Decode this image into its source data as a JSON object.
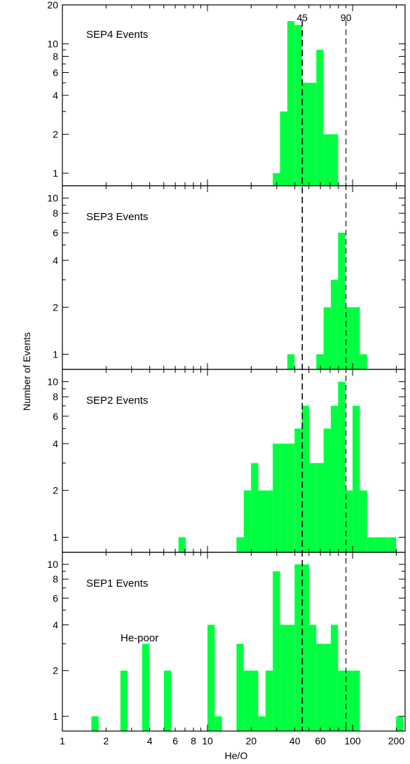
{
  "figure": {
    "xlabel": "He/O",
    "ylabel": "Number of Events",
    "x_tick_labels": [
      "1",
      "2",
      "4",
      "6",
      "8",
      "10",
      "20",
      "40",
      "60",
      "100",
      "200"
    ],
    "reference_lines": [
      {
        "x": 45,
        "label": "45"
      },
      {
        "x": 90,
        "label": "90"
      }
    ]
  },
  "chart_data": [
    {
      "type": "bar",
      "title": "SEP4 Events",
      "x_scale": "log",
      "y_scale": "log",
      "xlim": [
        1,
        230
      ],
      "ylim": [
        0.8,
        20
      ],
      "y_tick_labels": [
        "1",
        "2",
        "4",
        "6",
        "8",
        "10",
        "20"
      ],
      "bins": [
        {
          "x0": 28.2,
          "x1": 31.6,
          "count": 1
        },
        {
          "x0": 31.6,
          "x1": 35.5,
          "count": 3
        },
        {
          "x0": 35.5,
          "x1": 39.8,
          "count": 15
        },
        {
          "x0": 39.8,
          "x1": 44.7,
          "count": 14
        },
        {
          "x0": 44.7,
          "x1": 50.1,
          "count": 5
        },
        {
          "x0": 50.1,
          "x1": 56.2,
          "count": 5
        },
        {
          "x0": 56.2,
          "x1": 63.1,
          "count": 9
        },
        {
          "x0": 63.1,
          "x1": 70.8,
          "count": 2
        },
        {
          "x0": 70.8,
          "x1": 79.4,
          "count": 2
        }
      ]
    },
    {
      "type": "bar",
      "title": "SEP3 Events",
      "x_scale": "log",
      "y_scale": "log",
      "xlim": [
        1,
        230
      ],
      "ylim": [
        0.8,
        12
      ],
      "y_tick_labels": [
        "1",
        "2",
        "4",
        "6",
        "8",
        "10"
      ],
      "bins": [
        {
          "x0": 35.5,
          "x1": 39.8,
          "count": 1
        },
        {
          "x0": 56.2,
          "x1": 63.1,
          "count": 1
        },
        {
          "x0": 63.1,
          "x1": 70.8,
          "count": 2
        },
        {
          "x0": 70.8,
          "x1": 79.4,
          "count": 3
        },
        {
          "x0": 79.4,
          "x1": 89.1,
          "count": 6
        },
        {
          "x0": 89.1,
          "x1": 100.0,
          "count": 2
        },
        {
          "x0": 100.0,
          "x1": 112.2,
          "count": 2
        },
        {
          "x0": 112.2,
          "x1": 125.9,
          "count": 1
        }
      ]
    },
    {
      "type": "bar",
      "title": "SEP2 Events",
      "x_scale": "log",
      "y_scale": "log",
      "xlim": [
        1,
        230
      ],
      "ylim": [
        0.8,
        12
      ],
      "y_tick_labels": [
        "1",
        "2",
        "4",
        "6",
        "8",
        "10"
      ],
      "bins": [
        {
          "x0": 6.31,
          "x1": 7.08,
          "count": 1
        },
        {
          "x0": 15.85,
          "x1": 17.78,
          "count": 1
        },
        {
          "x0": 17.78,
          "x1": 19.95,
          "count": 2
        },
        {
          "x0": 19.95,
          "x1": 22.39,
          "count": 3
        },
        {
          "x0": 22.39,
          "x1": 25.12,
          "count": 2
        },
        {
          "x0": 25.12,
          "x1": 28.18,
          "count": 2
        },
        {
          "x0": 28.18,
          "x1": 31.62,
          "count": 4
        },
        {
          "x0": 31.62,
          "x1": 35.48,
          "count": 4
        },
        {
          "x0": 35.48,
          "x1": 39.81,
          "count": 4
        },
        {
          "x0": 39.81,
          "x1": 44.67,
          "count": 5
        },
        {
          "x0": 44.67,
          "x1": 50.12,
          "count": 7
        },
        {
          "x0": 50.12,
          "x1": 56.23,
          "count": 3
        },
        {
          "x0": 56.23,
          "x1": 63.1,
          "count": 3
        },
        {
          "x0": 63.1,
          "x1": 70.79,
          "count": 5
        },
        {
          "x0": 70.79,
          "x1": 79.43,
          "count": 7
        },
        {
          "x0": 79.43,
          "x1": 89.13,
          "count": 10
        },
        {
          "x0": 89.13,
          "x1": 100.0,
          "count": 2
        },
        {
          "x0": 100.0,
          "x1": 112.2,
          "count": 7
        },
        {
          "x0": 112.2,
          "x1": 125.9,
          "count": 2
        },
        {
          "x0": 125.9,
          "x1": 141.3,
          "count": 1
        },
        {
          "x0": 141.3,
          "x1": 158.5,
          "count": 1
        },
        {
          "x0": 158.5,
          "x1": 177.8,
          "count": 1
        },
        {
          "x0": 177.8,
          "x1": 199.5,
          "count": 1
        }
      ]
    },
    {
      "type": "bar",
      "title": "SEP1 Events",
      "x_scale": "log",
      "y_scale": "log",
      "xlim": [
        1,
        230
      ],
      "ylim": [
        0.8,
        12
      ],
      "y_tick_labels": [
        "1",
        "2",
        "4",
        "6",
        "8",
        "10"
      ],
      "annotation": "He-poor",
      "bins": [
        {
          "x0": 1.585,
          "x1": 1.778,
          "count": 1
        },
        {
          "x0": 2.512,
          "x1": 2.818,
          "count": 2
        },
        {
          "x0": 3.548,
          "x1": 3.981,
          "count": 3
        },
        {
          "x0": 5.012,
          "x1": 5.623,
          "count": 2
        },
        {
          "x0": 10.0,
          "x1": 11.22,
          "count": 4
        },
        {
          "x0": 11.22,
          "x1": 12.59,
          "count": 1
        },
        {
          "x0": 15.85,
          "x1": 17.78,
          "count": 3
        },
        {
          "x0": 17.78,
          "x1": 19.95,
          "count": 2
        },
        {
          "x0": 19.95,
          "x1": 22.39,
          "count": 2
        },
        {
          "x0": 22.39,
          "x1": 25.12,
          "count": 1
        },
        {
          "x0": 25.12,
          "x1": 28.18,
          "count": 2
        },
        {
          "x0": 28.18,
          "x1": 31.62,
          "count": 9
        },
        {
          "x0": 31.62,
          "x1": 35.48,
          "count": 4
        },
        {
          "x0": 35.48,
          "x1": 39.81,
          "count": 4
        },
        {
          "x0": 39.81,
          "x1": 44.67,
          "count": 10
        },
        {
          "x0": 44.67,
          "x1": 50.12,
          "count": 10
        },
        {
          "x0": 50.12,
          "x1": 56.23,
          "count": 4
        },
        {
          "x0": 56.23,
          "x1": 63.1,
          "count": 3
        },
        {
          "x0": 63.1,
          "x1": 70.79,
          "count": 3
        },
        {
          "x0": 70.79,
          "x1": 79.43,
          "count": 4
        },
        {
          "x0": 79.43,
          "x1": 89.13,
          "count": 2
        },
        {
          "x0": 89.13,
          "x1": 100.0,
          "count": 2
        },
        {
          "x0": 100.0,
          "x1": 112.2,
          "count": 2
        },
        {
          "x0": 199.5,
          "x1": 223.9,
          "count": 1
        }
      ]
    }
  ]
}
